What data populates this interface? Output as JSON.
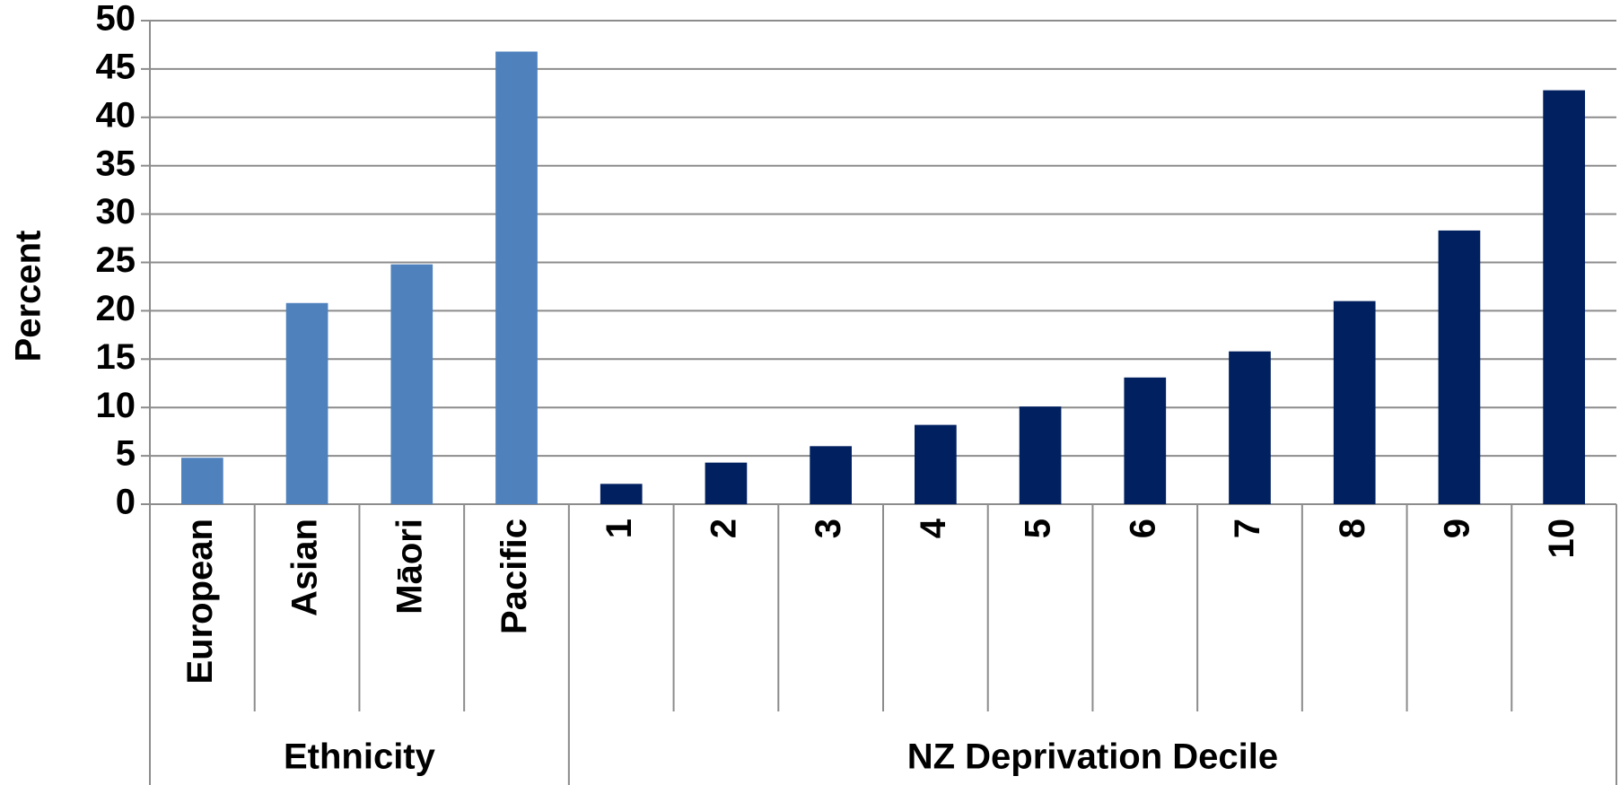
{
  "chart_data": {
    "type": "bar",
    "ylabel": "Percent",
    "groups": [
      {
        "label": "Ethnicity",
        "color": "#4f81bd",
        "categories": [
          "European",
          "Asian",
          "Māori",
          "Pacific"
        ],
        "values": [
          4.8,
          20.8,
          24.8,
          46.8
        ]
      },
      {
        "label": "NZ Deprivation Decile",
        "color": "#002060",
        "categories": [
          "1",
          "2",
          "3",
          "4",
          "5",
          "6",
          "7",
          "8",
          "9",
          "10"
        ],
        "values": [
          2.1,
          4.3,
          6.0,
          8.2,
          10.1,
          13.1,
          15.8,
          21.0,
          28.3,
          42.8
        ]
      }
    ],
    "ylim": [
      0,
      50
    ],
    "yticks": [
      0,
      5,
      10,
      15,
      20,
      25,
      30,
      35,
      40,
      45,
      50
    ],
    "grid": true
  }
}
